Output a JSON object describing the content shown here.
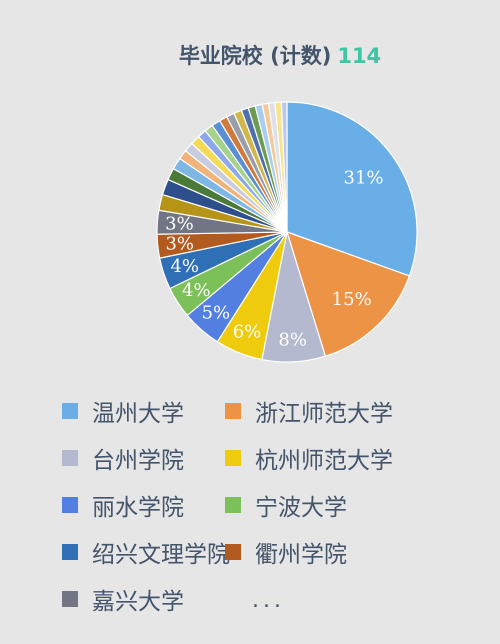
{
  "chart_data": {
    "type": "pie",
    "title": "毕业院校 (计数)",
    "total": "114",
    "slices": [
      {
        "name": "温州大学",
        "value": 31,
        "label": "31%",
        "color": "#6aaee7"
      },
      {
        "name": "浙江师范大学",
        "value": 15,
        "label": "15%",
        "color": "#ec9346"
      },
      {
        "name": "台州学院",
        "value": 8,
        "label": "8%",
        "color": "#b4b9cf"
      },
      {
        "name": "杭州师范大学",
        "value": 6,
        "label": "6%",
        "color": "#eecb0c"
      },
      {
        "name": "丽水学院",
        "value": 5,
        "label": "5%",
        "color": "#527fe0"
      },
      {
        "name": "宁波大学",
        "value": 4,
        "label": "4%",
        "color": "#7cc05a"
      },
      {
        "name": "绍兴文理学院",
        "value": 4,
        "label": "4%",
        "color": "#2f6fb5"
      },
      {
        "name": "衢州学院",
        "value": 3,
        "label": "3%",
        "color": "#b35a1e"
      },
      {
        "name": "嘉兴大学",
        "value": 3,
        "label": "3%",
        "color": "#727684"
      },
      {
        "name": "",
        "value": 2,
        "label": "",
        "color": "#b59418"
      },
      {
        "name": "",
        "value": 2,
        "label": "",
        "color": "#2d4f8c"
      },
      {
        "name": "",
        "value": 1.5,
        "label": "",
        "color": "#4a7a37"
      },
      {
        "name": "",
        "value": 1.5,
        "label": "",
        "color": "#7fb7e4"
      },
      {
        "name": "",
        "value": 1.2,
        "label": "",
        "color": "#f0b37a"
      },
      {
        "name": "",
        "value": 1.2,
        "label": "",
        "color": "#c9cce0"
      },
      {
        "name": "",
        "value": 1.2,
        "label": "",
        "color": "#f3da57"
      },
      {
        "name": "",
        "value": 1.1,
        "label": "",
        "color": "#8ca8ea"
      },
      {
        "name": "",
        "value": 1.1,
        "label": "",
        "color": "#a5d38a"
      },
      {
        "name": "",
        "value": 1.1,
        "label": "",
        "color": "#5b8fd4"
      },
      {
        "name": "",
        "value": 1.0,
        "label": "",
        "color": "#d07a3c"
      },
      {
        "name": "",
        "value": 1.0,
        "label": "",
        "color": "#9a9dab"
      },
      {
        "name": "",
        "value": 1.0,
        "label": "",
        "color": "#d1b64a"
      },
      {
        "name": "",
        "value": 0.9,
        "label": "",
        "color": "#4f6fae"
      },
      {
        "name": "",
        "value": 0.9,
        "label": "",
        "color": "#6c9b52"
      },
      {
        "name": "",
        "value": 0.9,
        "label": "",
        "color": "#a9cdee"
      },
      {
        "name": "",
        "value": 0.8,
        "label": "",
        "color": "#f5c89a"
      },
      {
        "name": "",
        "value": 0.8,
        "label": "",
        "color": "#dfe0ea"
      },
      {
        "name": "",
        "value": 0.8,
        "label": "",
        "color": "#f6e58c"
      },
      {
        "name": "",
        "value": 0.7,
        "label": "",
        "color": "#b9c8f0"
      }
    ],
    "legend": [
      {
        "name": "温州大学",
        "color": "#6aaee7"
      },
      {
        "name": "浙江师范大学",
        "color": "#ec9346"
      },
      {
        "name": "台州学院",
        "color": "#b4b9cf"
      },
      {
        "name": "杭州师范大学",
        "color": "#eecb0c"
      },
      {
        "name": "丽水学院",
        "color": "#527fe0"
      },
      {
        "name": "宁波大学",
        "color": "#7cc05a"
      },
      {
        "name": "绍兴文理学院",
        "color": "#2f6fb5"
      },
      {
        "name": "衢州学院",
        "color": "#b35a1e"
      },
      {
        "name": "嘉兴大学",
        "color": "#727684"
      }
    ],
    "legend_more": "...",
    "legend_placement": "bottom"
  }
}
